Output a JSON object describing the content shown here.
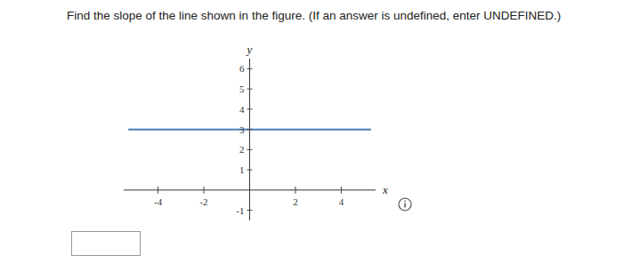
{
  "question": "Find the slope of the line shown in the figure. (If an answer is undefined, enter UNDEFINED.)",
  "chart_data": {
    "type": "line",
    "x": [
      -5.3,
      5.3
    ],
    "values": [
      3,
      3
    ],
    "color": "#4a7db4",
    "xlim": [
      -5.5,
      5.5
    ],
    "ylim": [
      -1.5,
      6.5
    ],
    "xticks": [
      -4,
      -2,
      2,
      4
    ],
    "yticks": [
      -1,
      1,
      2,
      3,
      4,
      5,
      6
    ],
    "x_label": "x",
    "y_label": "y"
  }
}
